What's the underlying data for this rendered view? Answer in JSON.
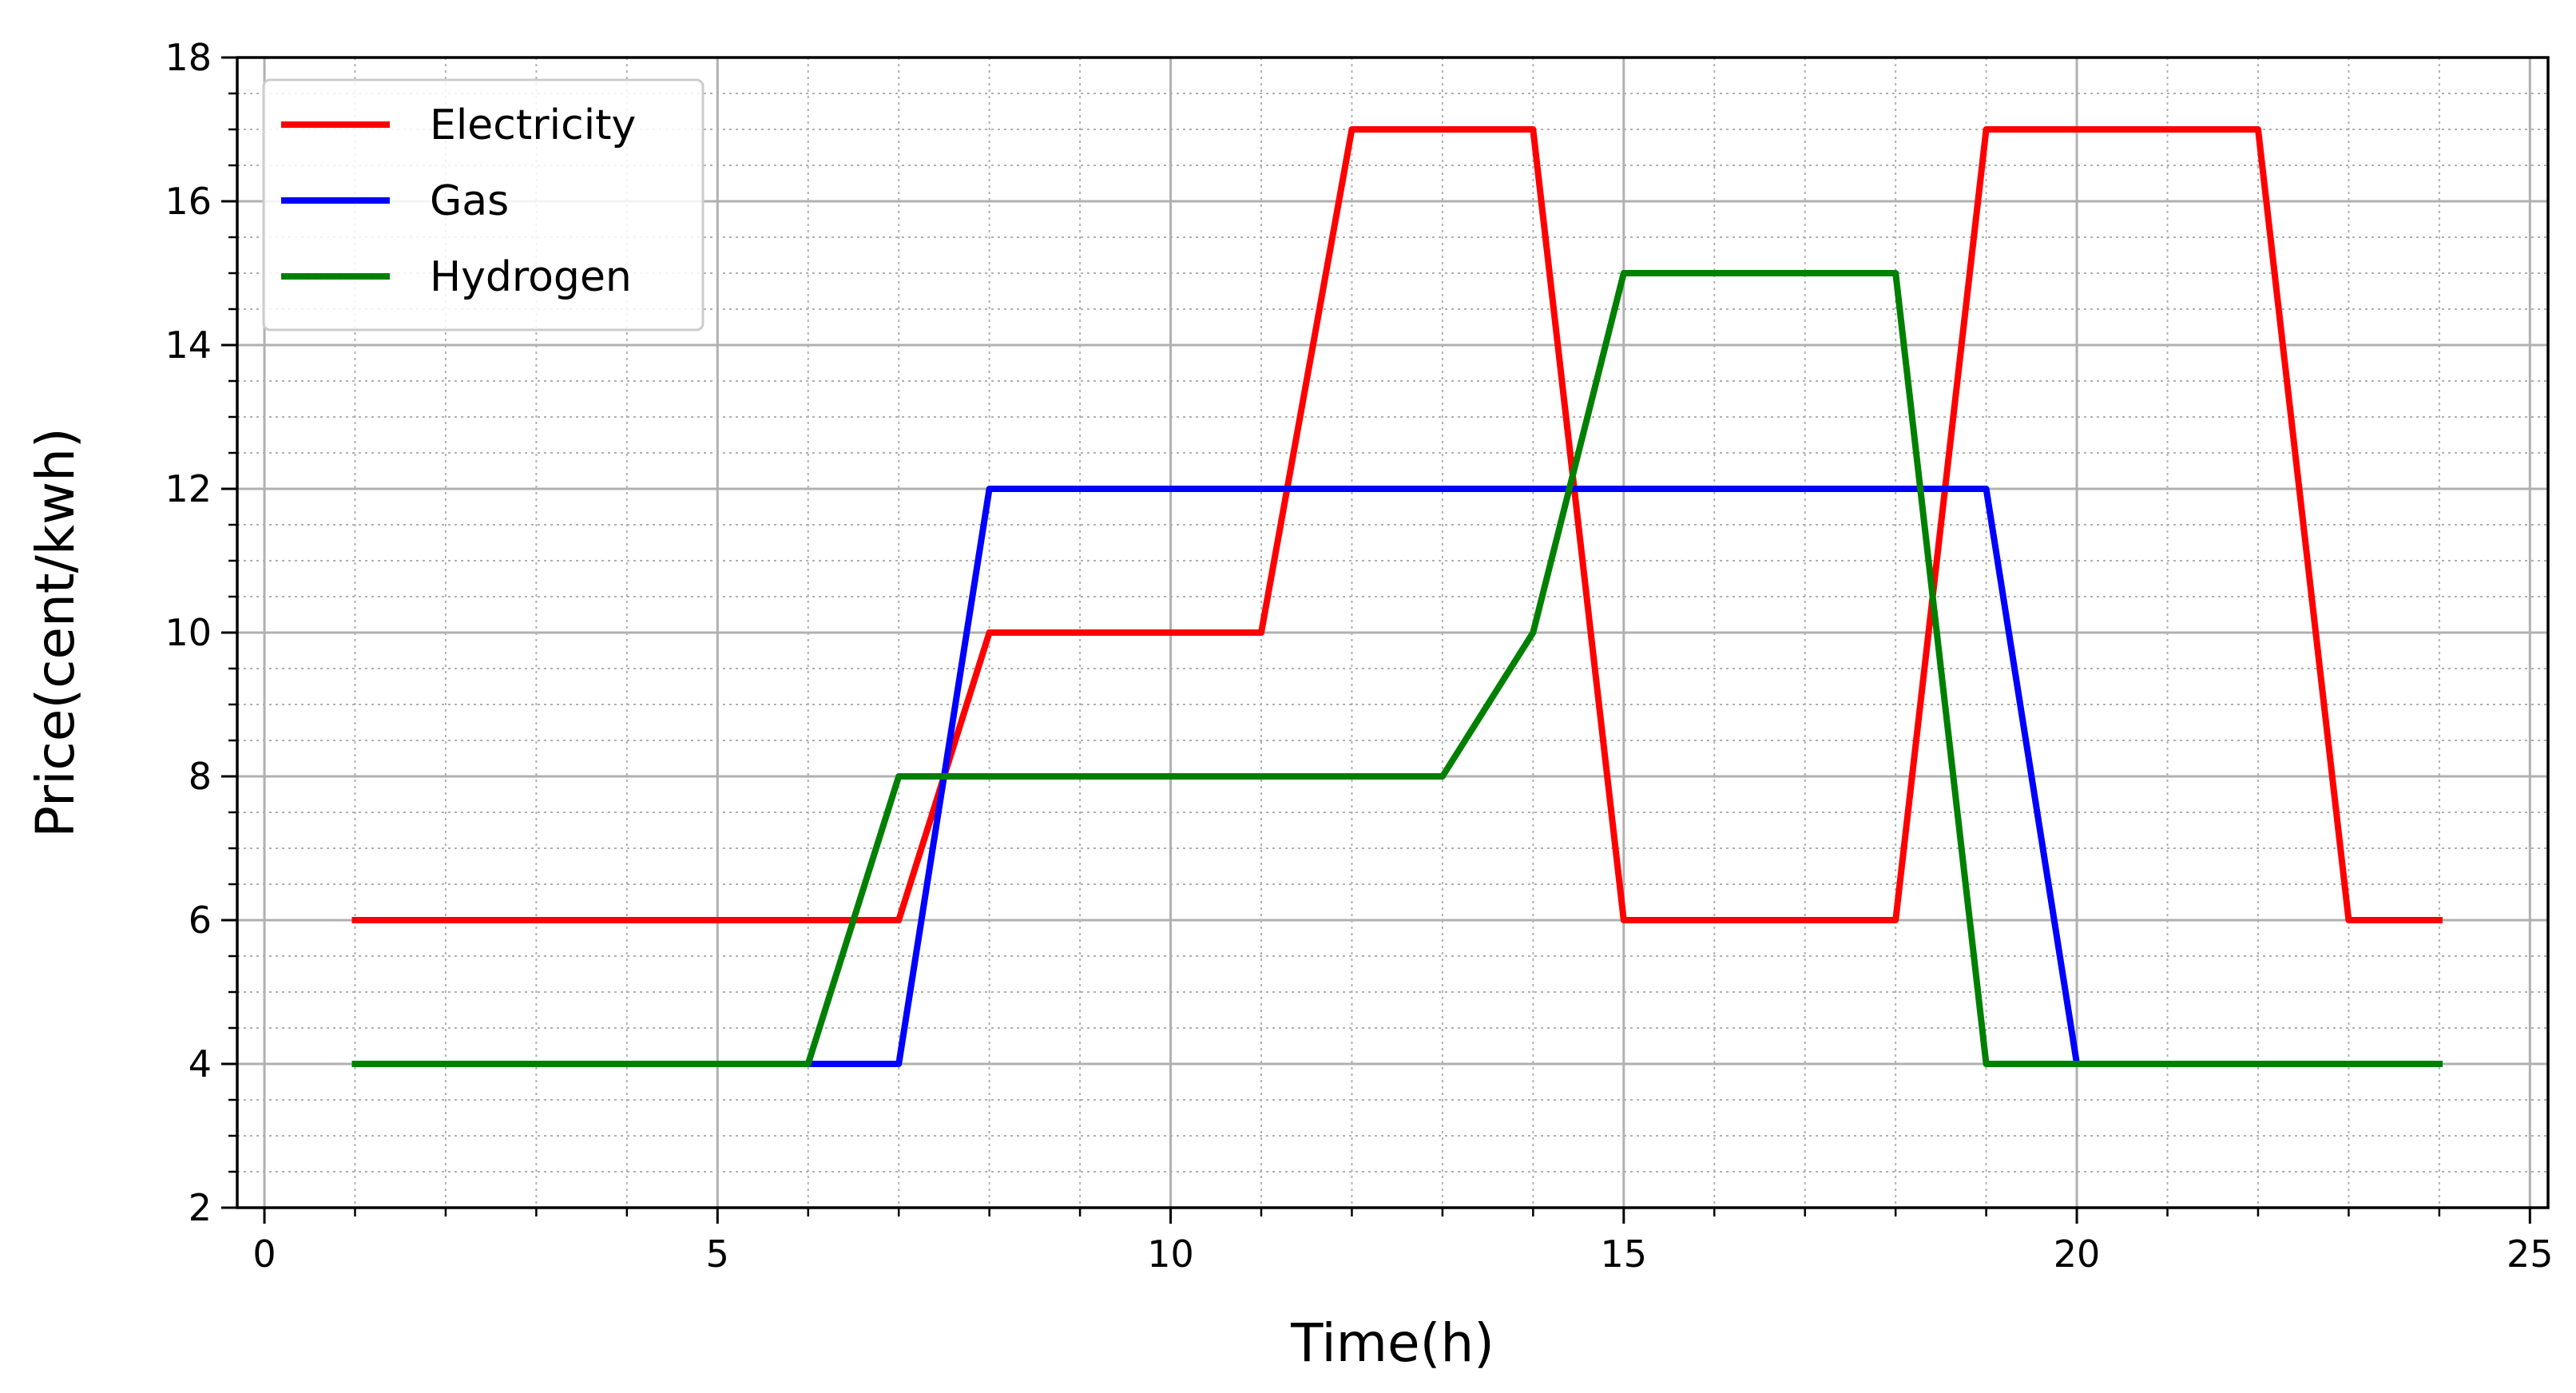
{
  "chart_data": {
    "type": "line",
    "title": "",
    "xlabel": "Time(h)",
    "ylabel": "Price(cent/kwh)",
    "xlim": [
      -0.3,
      25.2
    ],
    "ylim": [
      2,
      18
    ],
    "xticks": [
      0,
      5,
      10,
      15,
      20,
      25
    ],
    "yticks": [
      2,
      4,
      6,
      8,
      10,
      12,
      14,
      16,
      18
    ],
    "x_minor_step": 1,
    "y_minor_step": 0.5,
    "grid": {
      "major": true,
      "minor": true
    },
    "legend_position": "top-left",
    "x": [
      1,
      2,
      3,
      4,
      5,
      6,
      7,
      8,
      9,
      10,
      11,
      12,
      13,
      14,
      15,
      16,
      17,
      18,
      19,
      20,
      21,
      22,
      23,
      24
    ],
    "series": [
      {
        "name": "Electricity",
        "color": "#ff0000",
        "values": [
          6,
          6,
          6,
          6,
          6,
          6,
          6,
          10,
          10,
          10,
          10,
          17,
          17,
          17,
          6,
          6,
          6,
          6,
          17,
          17,
          17,
          17,
          6,
          6
        ]
      },
      {
        "name": "Gas",
        "color": "#0000ff",
        "values": [
          4,
          4,
          4,
          4,
          4,
          4,
          4,
          12,
          12,
          12,
          12,
          12,
          12,
          12,
          12,
          12,
          12,
          12,
          12,
          4,
          4,
          4,
          4,
          4
        ]
      },
      {
        "name": "Hydrogen",
        "color": "#008000",
        "values": [
          4,
          4,
          4,
          4,
          4,
          4,
          8,
          8,
          8,
          8,
          8,
          8,
          8,
          10,
          15,
          15,
          15,
          15,
          4,
          4,
          4,
          4,
          4,
          4
        ]
      }
    ]
  }
}
